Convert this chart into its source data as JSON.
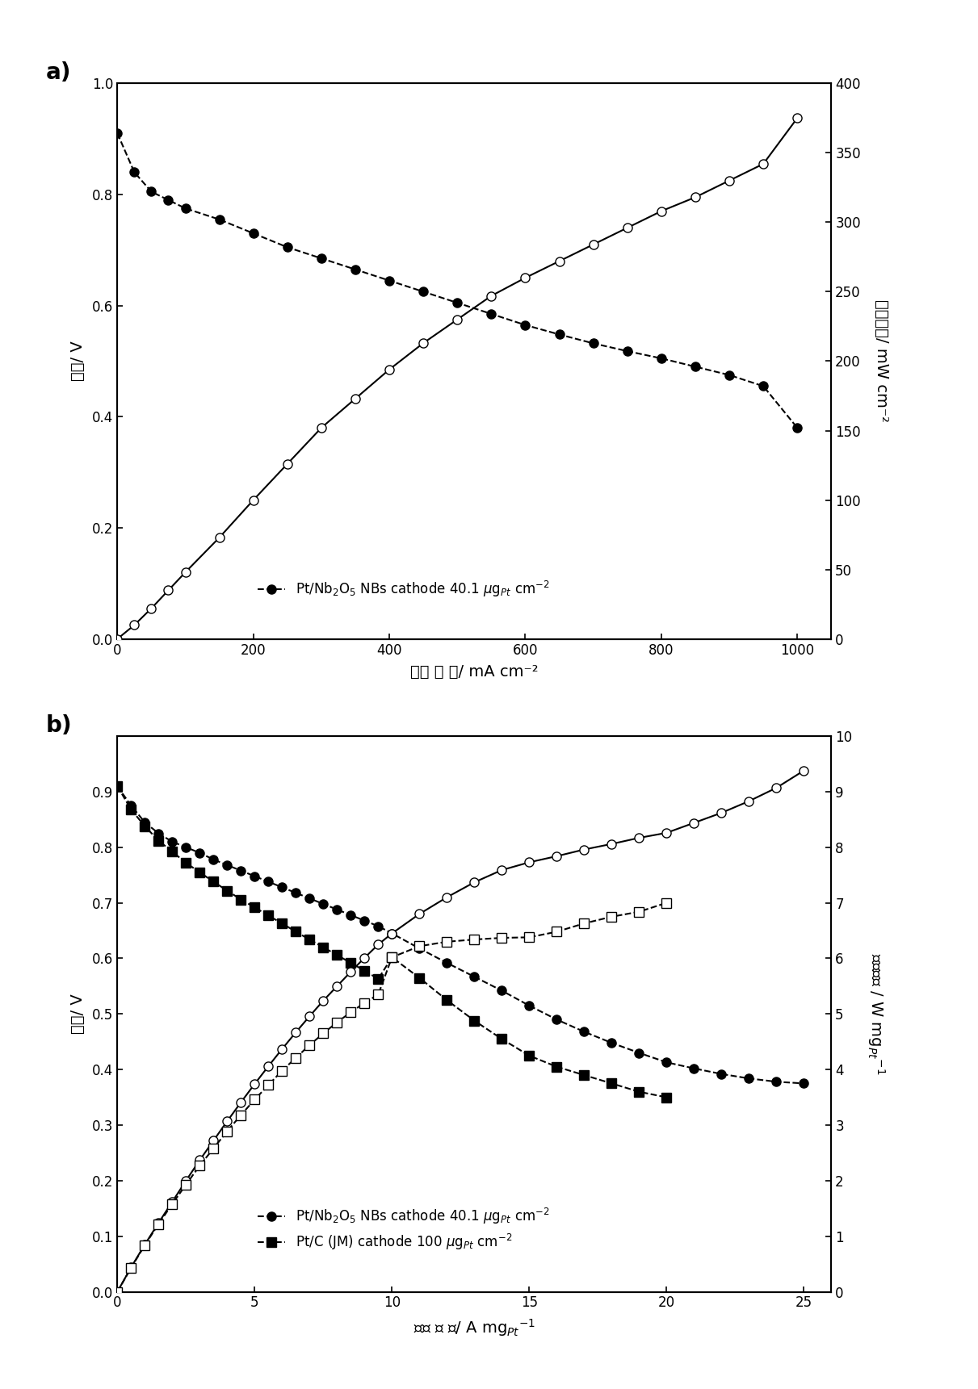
{
  "panel_a": {
    "voltage_x": [
      0,
      25,
      50,
      75,
      100,
      150,
      200,
      250,
      300,
      350,
      400,
      450,
      500,
      550,
      600,
      650,
      700,
      750,
      800,
      850,
      900,
      950,
      1000
    ],
    "voltage_y": [
      0.91,
      0.84,
      0.805,
      0.79,
      0.775,
      0.755,
      0.73,
      0.705,
      0.685,
      0.665,
      0.645,
      0.625,
      0.605,
      0.585,
      0.565,
      0.548,
      0.532,
      0.518,
      0.505,
      0.49,
      0.475,
      0.455,
      0.38
    ],
    "power_x": [
      0,
      25,
      50,
      75,
      100,
      150,
      200,
      250,
      300,
      350,
      400,
      450,
      500,
      550,
      600,
      650,
      700,
      750,
      800,
      850,
      900,
      950,
      1000
    ],
    "power_y": [
      0,
      10,
      22,
      35,
      48,
      73,
      100,
      126,
      152,
      173,
      194,
      213,
      230,
      247,
      260,
      272,
      284,
      296,
      308,
      318,
      330,
      342,
      375
    ],
    "xlabel": "电流 密 度/ mA cm⁻²",
    "ylabel_left": "电压/ V",
    "ylabel_right": "功率密度/ mW cm⁻²",
    "xlim": [
      0,
      1050
    ],
    "ylim_left": [
      0,
      1.0
    ],
    "ylim_right": [
      0,
      400
    ],
    "xticks": [
      0,
      200,
      400,
      600,
      800,
      1000
    ],
    "yticks_left": [
      0.0,
      0.2,
      0.4,
      0.6,
      0.8,
      1.0
    ],
    "yticks_right": [
      0,
      50,
      100,
      150,
      200,
      250,
      300,
      350,
      400
    ],
    "legend": "Pt/Nb$_2$O$_5$ NBs cathode 40.1 $\\mu$g$_{Pt}$ cm$^{-2}$",
    "panel_label": "a)"
  },
  "panel_b": {
    "voltage_nb_x": [
      0,
      0.5,
      1,
      1.5,
      2,
      2.5,
      3,
      3.5,
      4,
      4.5,
      5,
      5.5,
      6,
      6.5,
      7,
      7.5,
      8,
      8.5,
      9,
      9.5,
      10,
      11,
      12,
      13,
      14,
      15,
      16,
      17,
      18,
      19,
      20,
      21,
      22,
      23,
      24,
      25
    ],
    "voltage_nb_y": [
      0.91,
      0.875,
      0.845,
      0.825,
      0.81,
      0.8,
      0.79,
      0.778,
      0.768,
      0.758,
      0.748,
      0.738,
      0.728,
      0.718,
      0.708,
      0.698,
      0.688,
      0.678,
      0.668,
      0.658,
      0.645,
      0.618,
      0.592,
      0.567,
      0.542,
      0.515,
      0.49,
      0.468,
      0.448,
      0.43,
      0.413,
      0.402,
      0.392,
      0.384,
      0.378,
      0.375
    ],
    "voltage_ptc_x": [
      0,
      0.5,
      1,
      1.5,
      2,
      2.5,
      3,
      3.5,
      4,
      4.5,
      5,
      5.5,
      6,
      6.5,
      7,
      7.5,
      8,
      8.5,
      9,
      9.5,
      10,
      11,
      12,
      13,
      14,
      15,
      16,
      17,
      18,
      19,
      20
    ],
    "voltage_ptc_y": [
      0.91,
      0.868,
      0.838,
      0.812,
      0.792,
      0.772,
      0.755,
      0.738,
      0.722,
      0.706,
      0.692,
      0.677,
      0.663,
      0.648,
      0.634,
      0.62,
      0.606,
      0.592,
      0.578,
      0.563,
      0.602,
      0.565,
      0.525,
      0.488,
      0.455,
      0.425,
      0.405,
      0.39,
      0.375,
      0.36,
      0.35
    ],
    "power_nb_x": [
      0,
      0.5,
      1,
      1.5,
      2,
      2.5,
      3,
      3.5,
      4,
      4.5,
      5,
      5.5,
      6,
      6.5,
      7,
      7.5,
      8,
      8.5,
      9,
      9.5,
      10,
      11,
      12,
      13,
      14,
      15,
      16,
      17,
      18,
      19,
      20,
      21,
      22,
      23,
      24,
      25
    ],
    "power_nb_y": [
      0,
      0.44,
      0.85,
      1.24,
      1.62,
      2.0,
      2.37,
      2.72,
      3.07,
      3.41,
      3.74,
      4.06,
      4.37,
      4.67,
      4.96,
      5.24,
      5.5,
      5.76,
      6.01,
      6.25,
      6.45,
      6.8,
      7.1,
      7.37,
      7.59,
      7.73,
      7.84,
      7.96,
      8.06,
      8.17,
      8.26,
      8.44,
      8.62,
      8.83,
      9.07,
      9.38
    ],
    "power_ptc_x": [
      0,
      0.5,
      1,
      1.5,
      2,
      2.5,
      3,
      3.5,
      4,
      4.5,
      5,
      5.5,
      6,
      6.5,
      7,
      7.5,
      8,
      8.5,
      9,
      9.5,
      10,
      11,
      12,
      13,
      14,
      15,
      16,
      17,
      18,
      19,
      20
    ],
    "power_ptc_y": [
      0,
      0.43,
      0.84,
      1.22,
      1.58,
      1.93,
      2.27,
      2.58,
      2.89,
      3.18,
      3.46,
      3.72,
      3.98,
      4.21,
      4.44,
      4.65,
      4.85,
      5.03,
      5.2,
      5.35,
      6.02,
      6.22,
      6.3,
      6.34,
      6.37,
      6.38,
      6.48,
      6.63,
      6.75,
      6.84,
      7.0
    ],
    "xlabel": "电流 密 度/ A mg$_{Pt}$$^{-1}$",
    "ylabel_left": "电压/ V",
    "ylabel_right": "功率密度 / W mg$_{Pt}$$^{-1}$",
    "xlim": [
      0,
      26
    ],
    "ylim_left": [
      0,
      1.0
    ],
    "ylim_right": [
      0,
      10
    ],
    "xticks": [
      0,
      5,
      10,
      15,
      20,
      25
    ],
    "yticks_left": [
      0.0,
      0.1,
      0.2,
      0.3,
      0.4,
      0.5,
      0.6,
      0.7,
      0.8,
      0.9
    ],
    "yticks_right": [
      0,
      1,
      2,
      3,
      4,
      5,
      6,
      7,
      8,
      9,
      10
    ],
    "legend1": "Pt/Nb$_2$O$_5$ NBs cathode 40.1 $\\mu$g$_{Pt}$ cm$^{-2}$",
    "legend2": "Pt/C (JM) cathode 100 $\\mu$g$_{Pt}$ cm$^{-2}$",
    "panel_label": "b)"
  },
  "figure": {
    "bg_color": "#ffffff",
    "text_color": "#000000",
    "font_size": 14,
    "marker_size": 8,
    "line_width": 1.5
  }
}
